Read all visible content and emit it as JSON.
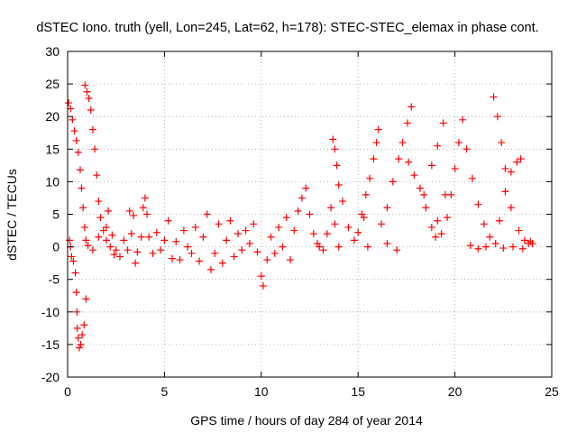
{
  "chart_data": {
    "type": "scatter",
    "title": "dSTEC Iono. truth (yell, Lon=245, Lat=62, h=178): STEC-STEC_elemax in phase cont.",
    "xlabel": "GPS time / hours of day 284 of year 2014",
    "ylabel": "dSTEC  / TECUs",
    "xlim": [
      0,
      25
    ],
    "ylim": [
      -20,
      30
    ],
    "xticks": [
      0,
      5,
      10,
      15,
      20,
      25
    ],
    "yticks": [
      -20,
      -15,
      -10,
      -5,
      0,
      5,
      10,
      15,
      20,
      25,
      30
    ],
    "grid": true,
    "marker": "+",
    "color": "#ff0000",
    "series": [
      {
        "values": [
          [
            0.05,
            22.1
          ],
          [
            0.15,
            21.2
          ],
          [
            0.25,
            19.5
          ],
          [
            0.35,
            17.8
          ],
          [
            0.45,
            16.3
          ],
          [
            0.55,
            14.5
          ],
          [
            0.65,
            11.8
          ],
          [
            0.72,
            9.0
          ],
          [
            0.8,
            6.0
          ],
          [
            0.88,
            3.0
          ],
          [
            0.95,
            1.0
          ],
          [
            1.05,
            0.2
          ],
          [
            0.1,
            1.0
          ],
          [
            0.15,
            0.0
          ],
          [
            0.2,
            -1.5
          ],
          [
            0.3,
            -2.2
          ],
          [
            0.4,
            -4.0
          ],
          [
            0.45,
            -7.0
          ],
          [
            0.48,
            -10.0
          ],
          [
            0.5,
            -12.5
          ],
          [
            0.55,
            -14.0
          ],
          [
            0.6,
            -15.5
          ],
          [
            0.68,
            -15.0
          ],
          [
            0.75,
            -13.5
          ],
          [
            0.85,
            -12.0
          ],
          [
            0.95,
            -8.0
          ],
          [
            0.9,
            24.8
          ],
          [
            1.0,
            23.8
          ],
          [
            1.1,
            22.8
          ],
          [
            1.2,
            21.0
          ],
          [
            1.3,
            18.0
          ],
          [
            1.4,
            15.0
          ],
          [
            1.5,
            11.0
          ],
          [
            1.6,
            7.0
          ],
          [
            1.7,
            4.5
          ],
          [
            1.85,
            2.5
          ],
          [
            2.0,
            1.0
          ],
          [
            2.2,
            0.0
          ],
          [
            2.4,
            -1.2
          ],
          [
            1.3,
            -0.5
          ],
          [
            1.6,
            1.5
          ],
          [
            2.0,
            3.0
          ],
          [
            2.1,
            5.5
          ],
          [
            2.3,
            1.8
          ],
          [
            2.5,
            -0.5
          ],
          [
            2.7,
            -1.5
          ],
          [
            2.9,
            1.0
          ],
          [
            3.1,
            -0.5
          ],
          [
            3.3,
            2.0
          ],
          [
            3.5,
            -2.5
          ],
          [
            3.2,
            5.5
          ],
          [
            3.4,
            4.8
          ],
          [
            3.6,
            -0.8
          ],
          [
            3.8,
            1.5
          ],
          [
            3.9,
            6.0
          ],
          [
            4.0,
            7.5
          ],
          [
            4.1,
            5.0
          ],
          [
            4.2,
            1.5
          ],
          [
            4.4,
            -1.0
          ],
          [
            4.6,
            2.2
          ],
          [
            4.8,
            -0.5
          ],
          [
            5.0,
            1.0
          ],
          [
            5.2,
            4.0
          ],
          [
            5.4,
            -1.8
          ],
          [
            5.6,
            0.8
          ],
          [
            5.8,
            -2.0
          ],
          [
            6.0,
            2.5
          ],
          [
            6.2,
            0.0
          ],
          [
            6.4,
            -1.0
          ],
          [
            6.6,
            3.0
          ],
          [
            6.8,
            -2.2
          ],
          [
            7.0,
            1.5
          ],
          [
            7.2,
            5.0
          ],
          [
            7.4,
            -3.5
          ],
          [
            7.6,
            -1.0
          ],
          [
            7.8,
            3.5
          ],
          [
            8.0,
            -2.5
          ],
          [
            8.2,
            1.0
          ],
          [
            8.4,
            4.0
          ],
          [
            8.6,
            -1.5
          ],
          [
            8.8,
            2.0
          ],
          [
            9.0,
            -0.5
          ],
          [
            9.2,
            2.5
          ],
          [
            9.4,
            0.5
          ],
          [
            9.6,
            3.5
          ],
          [
            9.8,
            -0.8
          ],
          [
            10.0,
            -4.5
          ],
          [
            10.1,
            -6.0
          ],
          [
            10.3,
            -2.0
          ],
          [
            10.5,
            1.5
          ],
          [
            10.7,
            -1.0
          ],
          [
            10.9,
            3.0
          ],
          [
            11.1,
            0.0
          ],
          [
            11.3,
            4.5
          ],
          [
            11.5,
            -2.0
          ],
          [
            11.7,
            2.5
          ],
          [
            11.9,
            5.5
          ],
          [
            12.1,
            7.5
          ],
          [
            12.3,
            9.0
          ],
          [
            12.5,
            5.0
          ],
          [
            12.7,
            2.0
          ],
          [
            12.9,
            0.5
          ],
          [
            13.0,
            0.0
          ],
          [
            13.2,
            -0.5
          ],
          [
            13.4,
            2.0
          ],
          [
            13.6,
            6.0
          ],
          [
            13.8,
            3.5
          ],
          [
            14.0,
            0.0
          ],
          [
            13.7,
            16.5
          ],
          [
            13.8,
            15.0
          ],
          [
            13.9,
            12.5
          ],
          [
            14.0,
            9.5
          ],
          [
            14.2,
            7.0
          ],
          [
            14.5,
            3.0
          ],
          [
            14.8,
            1.0
          ],
          [
            15.0,
            2.2
          ],
          [
            15.2,
            5.0
          ],
          [
            15.4,
            8.0
          ],
          [
            15.6,
            10.5
          ],
          [
            15.8,
            13.5
          ],
          [
            15.95,
            16.0
          ],
          [
            16.05,
            18.0
          ],
          [
            15.5,
            0.0
          ],
          [
            15.3,
            4.5
          ],
          [
            16.2,
            3.5
          ],
          [
            16.5,
            6.0
          ],
          [
            16.8,
            10.0
          ],
          [
            17.1,
            13.5
          ],
          [
            17.3,
            16.0
          ],
          [
            17.55,
            19.0
          ],
          [
            17.75,
            21.5
          ],
          [
            16.5,
            0.5
          ],
          [
            17.0,
            -0.5
          ],
          [
            17.6,
            13.0
          ],
          [
            17.9,
            11.0
          ],
          [
            18.2,
            9.0
          ],
          [
            18.5,
            6.0
          ],
          [
            18.8,
            3.0
          ],
          [
            19.0,
            1.5
          ],
          [
            19.3,
            2.0
          ],
          [
            19.6,
            4.5
          ],
          [
            19.8,
            8.0
          ],
          [
            20.0,
            12.0
          ],
          [
            20.2,
            16.0
          ],
          [
            20.4,
            19.5
          ],
          [
            18.4,
            8.0
          ],
          [
            18.8,
            12.5
          ],
          [
            19.1,
            15.5
          ],
          [
            19.4,
            19.0
          ],
          [
            19.1,
            4.0
          ],
          [
            19.5,
            8.0
          ],
          [
            20.6,
            15.0
          ],
          [
            20.9,
            10.5
          ],
          [
            21.2,
            6.5
          ],
          [
            21.5,
            3.5
          ],
          [
            21.8,
            1.5
          ],
          [
            22.1,
            0.5
          ],
          [
            22.3,
            4.0
          ],
          [
            22.6,
            8.5
          ],
          [
            22.9,
            11.5
          ],
          [
            23.2,
            13.0
          ],
          [
            23.4,
            13.5
          ],
          [
            22.0,
            23.0
          ],
          [
            22.2,
            20.0
          ],
          [
            22.4,
            16.0
          ],
          [
            22.6,
            12.0
          ],
          [
            22.9,
            6.0
          ],
          [
            23.3,
            2.5
          ],
          [
            23.6,
            1.0
          ],
          [
            23.8,
            0.5
          ],
          [
            24.0,
            0.5
          ],
          [
            20.8,
            0.2
          ],
          [
            21.2,
            -0.3
          ],
          [
            21.6,
            0.0
          ],
          [
            22.5,
            -0.2
          ],
          [
            23.0,
            0.0
          ],
          [
            23.5,
            -0.3
          ],
          [
            23.9,
            0.8
          ]
        ]
      }
    ]
  }
}
